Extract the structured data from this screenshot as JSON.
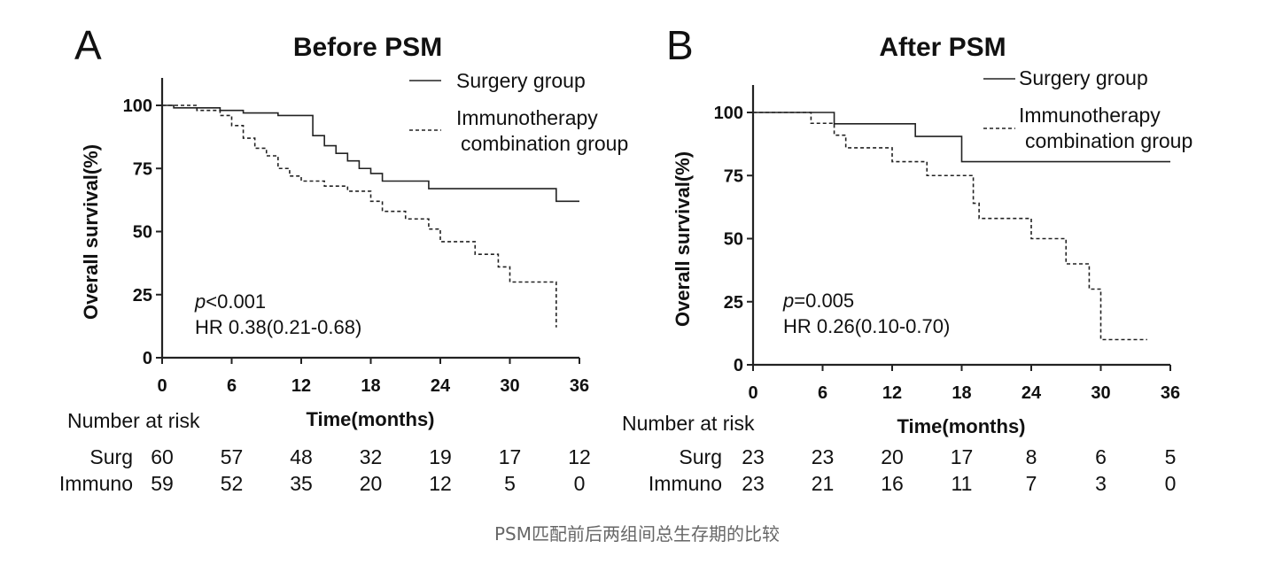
{
  "caption": "PSM匹配前后两组间总生存期的比较",
  "colors": {
    "line": "#222222",
    "text": "#111111",
    "caption": "#666666"
  },
  "chart_data": [
    {
      "type": "line",
      "panel_label": "A",
      "title": "Before PSM",
      "xlabel": "Time(months)",
      "ylabel": "Overall survival(%)",
      "xlim": [
        0,
        36
      ],
      "ylim": [
        0,
        100
      ],
      "xticks": [
        0,
        6,
        12,
        18,
        24,
        30,
        36
      ],
      "yticks": [
        0,
        25,
        50,
        75,
        100
      ],
      "legend_position": "top-right",
      "series": [
        {
          "name": "Surgery group",
          "style": "solid",
          "x": [
            0,
            1,
            3,
            5,
            7,
            10,
            13,
            14,
            15,
            16,
            17,
            18,
            19,
            23,
            34,
            36
          ],
          "y": [
            100,
            99,
            99,
            98,
            97,
            96,
            88,
            84,
            81,
            78,
            75,
            73,
            70,
            67,
            62,
            62
          ]
        },
        {
          "name": "Immunotherapy combination group",
          "style": "dashed",
          "x": [
            0,
            1,
            3,
            5,
            6,
            7,
            8,
            9,
            10,
            11,
            12,
            14,
            16,
            18,
            19,
            21,
            23,
            24,
            27,
            29,
            30,
            34
          ],
          "y": [
            100,
            100,
            98,
            96,
            92,
            87,
            83,
            80,
            75,
            72,
            70,
            68,
            66,
            62,
            58,
            55,
            51,
            46,
            41,
            36,
            30,
            12
          ]
        }
      ],
      "annotations": {
        "p_prefix": "p",
        "p_value": "<0.001",
        "hr": "HR 0.38(0.21-0.68)"
      },
      "risk_table": {
        "title": "Number at risk",
        "rows": [
          {
            "label": "Surg",
            "values": [
              "60",
              "57",
              "48",
              "32",
              "19",
              "17",
              "12"
            ]
          },
          {
            "label": "Immuno",
            "values": [
              "59",
              "52",
              "35",
              "20",
              "12",
              "5",
              "0"
            ]
          }
        ]
      }
    },
    {
      "type": "line",
      "panel_label": "B",
      "title": "After PSM",
      "xlabel": "Time(months)",
      "ylabel": "Overall survival(%)",
      "xlim": [
        0,
        36
      ],
      "ylim": [
        0,
        100
      ],
      "xticks": [
        0,
        6,
        12,
        18,
        24,
        30,
        36
      ],
      "yticks": [
        0,
        25,
        50,
        75,
        100
      ],
      "legend_position": "top-right",
      "series": [
        {
          "name": "Surgery group",
          "style": "solid",
          "x": [
            0,
            7,
            14,
            18,
            36
          ],
          "y": [
            100,
            95.5,
            90.5,
            80.5,
            80.5
          ]
        },
        {
          "name": "Immunotherapy combination group",
          "style": "dashed",
          "x": [
            0,
            5,
            7,
            8,
            12,
            15,
            19,
            19.5,
            24,
            27,
            29,
            30,
            34
          ],
          "y": [
            100,
            95.7,
            91,
            86,
            80.5,
            75,
            64,
            58,
            50,
            40,
            30,
            10,
            10
          ]
        }
      ],
      "annotations": {
        "p_prefix": "p",
        "p_value": "=0.005",
        "hr": "HR 0.26(0.10-0.70)"
      },
      "risk_table": {
        "title": "Number at risk",
        "rows": [
          {
            "label": "Surg",
            "values": [
              "23",
              "23",
              "20",
              "17",
              "8",
              "6",
              "5"
            ]
          },
          {
            "label": "Immuno",
            "values": [
              "23",
              "21",
              "16",
              "11",
              "7",
              "3",
              "0"
            ]
          }
        ]
      }
    }
  ]
}
